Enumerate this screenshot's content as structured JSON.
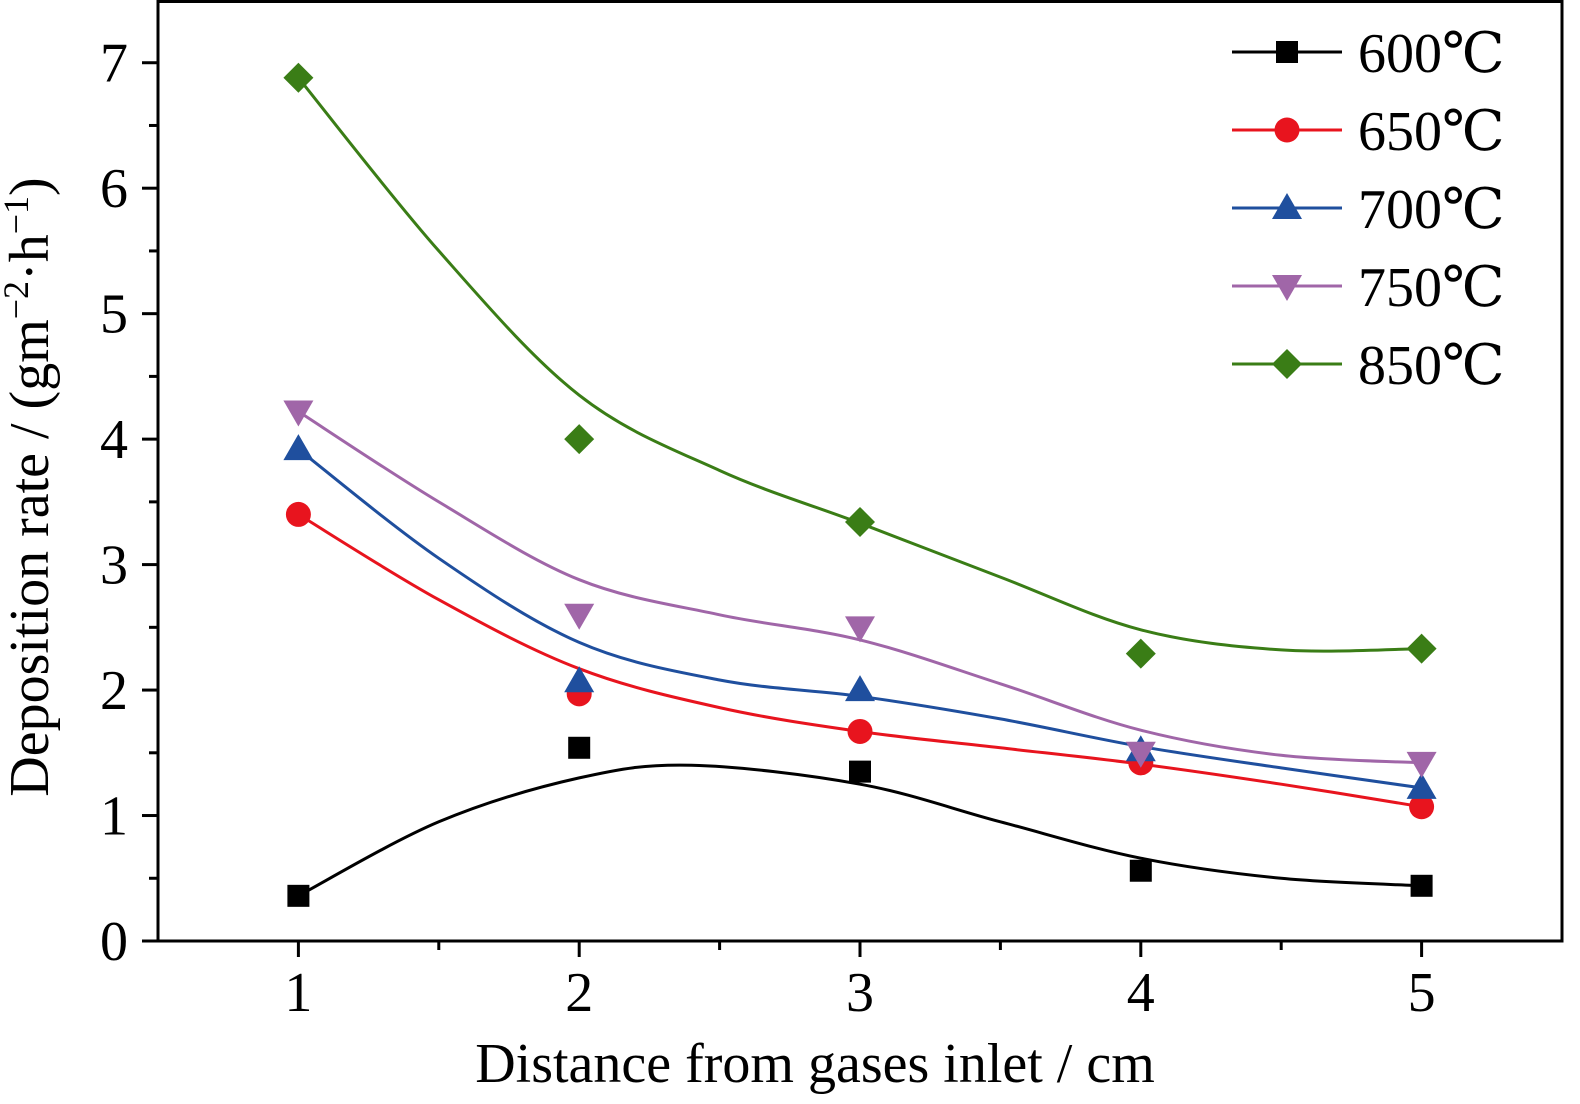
{
  "chart_data": {
    "type": "scatter",
    "xlabel": "Distance from gases inlet / cm",
    "ylabel_main": "Deposition rate / (gm",
    "ylabel_sup1": "−2",
    "ylabel_mid": "·h",
    "ylabel_sup2": "−1",
    "ylabel_end": ")",
    "xlim": [
      0.5,
      5.5
    ],
    "ylim": [
      0,
      7.5
    ],
    "x_ticks": [
      1,
      2,
      3,
      4,
      5
    ],
    "y_ticks": [
      0,
      1,
      2,
      3,
      4,
      5,
      6,
      7
    ],
    "x_minor_ticks": [
      1.5,
      2.5,
      3.5,
      4.5
    ],
    "y_minor_ticks": [
      0.5,
      1.5,
      2.5,
      3.5,
      4.5,
      5.5,
      6.5
    ],
    "grid": false,
    "legend_position": "top-right",
    "x": [
      1,
      2,
      3,
      4,
      5
    ],
    "series": [
      {
        "name": "600℃",
        "color": "#000000",
        "marker": "square",
        "values": [
          0.36,
          1.54,
          1.35,
          0.56,
          0.44
        ],
        "fit": [
          [
            1,
            0.36
          ],
          [
            1.5,
            0.95
          ],
          [
            2,
            1.3
          ],
          [
            2.4,
            1.4
          ],
          [
            3,
            1.25
          ],
          [
            3.5,
            0.95
          ],
          [
            4,
            0.66
          ],
          [
            4.5,
            0.5
          ],
          [
            5,
            0.44
          ]
        ]
      },
      {
        "name": "650℃",
        "color": "#e8141e",
        "marker": "circle",
        "values": [
          3.4,
          1.97,
          1.67,
          1.42,
          1.07
        ],
        "fit": [
          [
            1,
            3.4
          ],
          [
            1.5,
            2.72
          ],
          [
            2,
            2.17
          ],
          [
            2.5,
            1.86
          ],
          [
            3,
            1.67
          ],
          [
            3.5,
            1.54
          ],
          [
            4,
            1.41
          ],
          [
            4.5,
            1.25
          ],
          [
            5,
            1.07
          ]
        ]
      },
      {
        "name": "700℃",
        "color": "#1f4f9e",
        "marker": "triangle-up",
        "values": [
          3.92,
          2.07,
          2.0,
          1.52,
          1.22
        ],
        "fit": [
          [
            1,
            3.92
          ],
          [
            1.5,
            3.05
          ],
          [
            2,
            2.38
          ],
          [
            2.5,
            2.08
          ],
          [
            3,
            1.95
          ],
          [
            3.5,
            1.77
          ],
          [
            4,
            1.55
          ],
          [
            4.5,
            1.38
          ],
          [
            5,
            1.22
          ]
        ]
      },
      {
        "name": "750℃",
        "color": "#a066a8",
        "marker": "triangle-down",
        "values": [
          4.22,
          2.6,
          2.5,
          1.5,
          1.42
        ],
        "fit": [
          [
            1,
            4.22
          ],
          [
            1.5,
            3.5
          ],
          [
            2,
            2.88
          ],
          [
            2.5,
            2.6
          ],
          [
            3,
            2.4
          ],
          [
            3.5,
            2.05
          ],
          [
            4,
            1.68
          ],
          [
            4.5,
            1.48
          ],
          [
            5,
            1.42
          ]
        ]
      },
      {
        "name": "850℃",
        "color": "#3a7d16",
        "marker": "diamond",
        "values": [
          6.88,
          4.0,
          3.34,
          2.29,
          2.33
        ],
        "fit": [
          [
            1,
            6.88
          ],
          [
            1.5,
            5.5
          ],
          [
            2,
            4.35
          ],
          [
            2.5,
            3.75
          ],
          [
            3,
            3.33
          ],
          [
            3.5,
            2.9
          ],
          [
            4,
            2.48
          ],
          [
            4.5,
            2.32
          ],
          [
            5,
            2.33
          ]
        ]
      }
    ]
  }
}
